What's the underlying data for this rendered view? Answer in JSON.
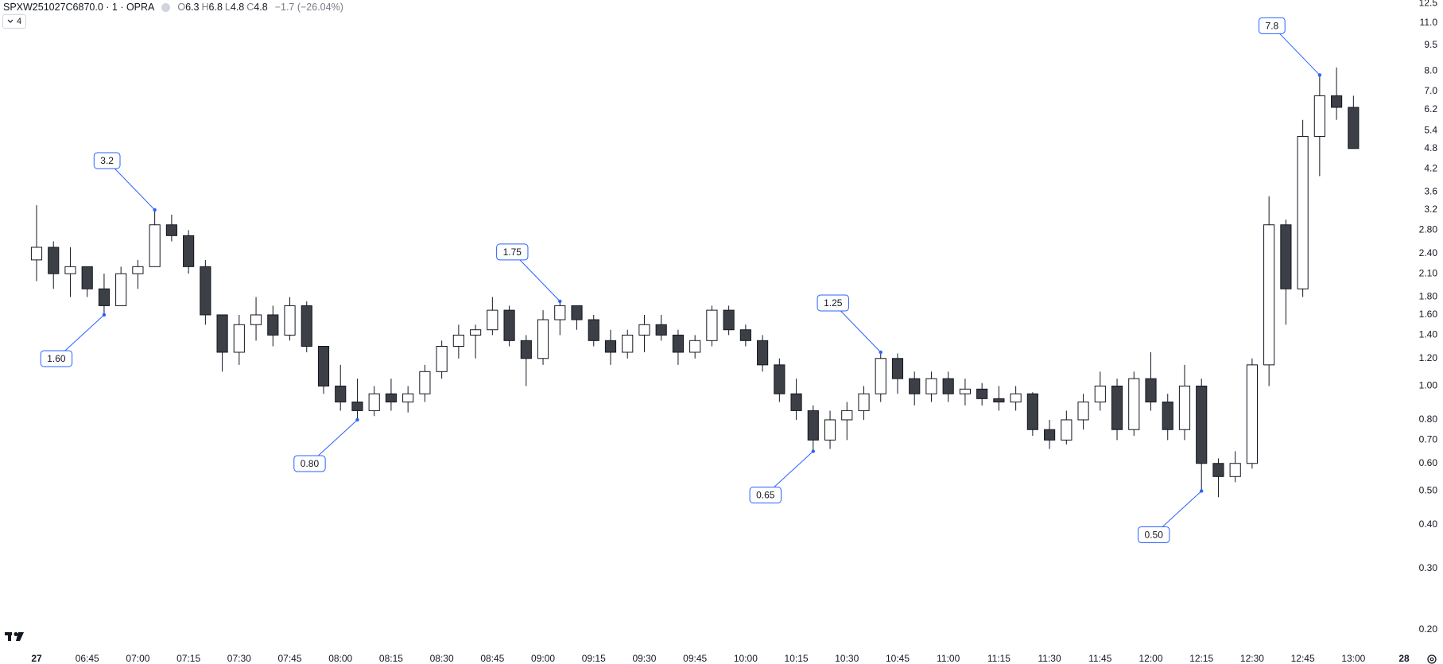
{
  "header": {
    "symbol": "SPXW251027C6870.0 · 1 · OPRA",
    "ohlc": [
      {
        "key": "O",
        "value": "6.3"
      },
      {
        "key": "H",
        "value": "6.8"
      },
      {
        "key": "L",
        "value": "4.8"
      },
      {
        "key": "C",
        "value": "4.8"
      }
    ],
    "change": "−1.7 (−26.04%)",
    "indicator_count": "4"
  },
  "chart_data": {
    "type": "candlestick",
    "log_scale": true,
    "up_color": "#ffffff",
    "down_color": "#3d3f47",
    "border_color": "#131722",
    "annotation_color": "#2962ff",
    "x": [
      "06:30",
      "06:35",
      "06:40",
      "06:45",
      "06:50",
      "06:55",
      "07:00",
      "07:05",
      "07:10",
      "07:15",
      "07:20",
      "07:25",
      "07:30",
      "07:35",
      "07:40",
      "07:45",
      "07:50",
      "07:55",
      "08:00",
      "08:05",
      "08:10",
      "08:15",
      "08:20",
      "08:25",
      "08:30",
      "08:35",
      "08:40",
      "08:45",
      "08:50",
      "08:55",
      "09:00",
      "09:05",
      "09:10",
      "09:15",
      "09:20",
      "09:25",
      "09:30",
      "09:35",
      "09:40",
      "09:45",
      "09:50",
      "09:55",
      "10:00",
      "10:05",
      "10:10",
      "10:15",
      "10:20",
      "10:25",
      "10:30",
      "10:35",
      "10:40",
      "10:45",
      "10:50",
      "10:55",
      "11:00",
      "11:05",
      "11:10",
      "11:15",
      "11:20",
      "11:25",
      "11:30",
      "11:35",
      "11:40",
      "11:45",
      "11:50",
      "11:55",
      "12:00",
      "12:05",
      "12:10",
      "12:15",
      "12:20",
      "12:25",
      "12:30",
      "12:35",
      "12:40",
      "12:45",
      "12:50",
      "12:55",
      "13:00"
    ],
    "open": [
      2.3,
      2.5,
      2.1,
      2.2,
      1.9,
      1.7,
      2.1,
      2.2,
      2.9,
      2.7,
      2.2,
      1.6,
      1.25,
      1.5,
      1.6,
      1.4,
      1.7,
      1.3,
      1.0,
      0.9,
      0.85,
      0.95,
      0.9,
      0.95,
      1.1,
      1.3,
      1.4,
      1.45,
      1.65,
      1.35,
      1.2,
      1.55,
      1.7,
      1.55,
      1.35,
      1.25,
      1.4,
      1.5,
      1.4,
      1.25,
      1.35,
      1.65,
      1.45,
      1.35,
      1.15,
      0.95,
      0.85,
      0.7,
      0.8,
      0.85,
      0.95,
      1.2,
      1.05,
      0.95,
      1.05,
      0.95,
      0.98,
      0.92,
      0.9,
      0.95,
      0.75,
      0.7,
      0.8,
      0.9,
      1.0,
      0.75,
      1.05,
      0.9,
      0.75,
      1.0,
      0.6,
      0.55,
      0.6,
      1.15,
      2.9,
      1.9,
      5.2,
      6.8,
      6.3
    ],
    "high": [
      3.3,
      2.6,
      2.5,
      2.2,
      2.1,
      2.2,
      2.3,
      3.2,
      3.1,
      2.8,
      2.3,
      1.6,
      1.6,
      1.8,
      1.7,
      1.8,
      1.75,
      1.3,
      1.15,
      1.05,
      1.0,
      1.05,
      1.0,
      1.15,
      1.35,
      1.5,
      1.5,
      1.8,
      1.7,
      1.4,
      1.65,
      1.75,
      1.7,
      1.6,
      1.45,
      1.45,
      1.6,
      1.6,
      1.45,
      1.4,
      1.7,
      1.7,
      1.5,
      1.4,
      1.2,
      1.05,
      0.88,
      0.85,
      0.9,
      1.0,
      1.25,
      1.24,
      1.1,
      1.1,
      1.1,
      1.05,
      1.02,
      1.0,
      1.0,
      0.96,
      0.8,
      0.85,
      0.95,
      1.1,
      1.05,
      1.1,
      1.25,
      0.95,
      1.15,
      1.05,
      0.62,
      0.65,
      1.2,
      3.5,
      3.0,
      5.8,
      7.8,
      8.2,
      6.8
    ],
    "low": [
      2.0,
      1.9,
      1.8,
      1.8,
      1.6,
      1.7,
      1.9,
      2.2,
      2.6,
      2.1,
      1.5,
      1.1,
      1.15,
      1.35,
      1.3,
      1.35,
      1.25,
      0.95,
      0.85,
      0.8,
      0.82,
      0.85,
      0.84,
      0.9,
      1.05,
      1.2,
      1.2,
      1.4,
      1.3,
      1.0,
      1.15,
      1.4,
      1.45,
      1.3,
      1.15,
      1.2,
      1.25,
      1.35,
      1.15,
      1.2,
      1.3,
      1.4,
      1.3,
      1.1,
      0.9,
      0.8,
      0.65,
      0.66,
      0.7,
      0.8,
      0.9,
      0.95,
      0.88,
      0.9,
      0.9,
      0.88,
      0.88,
      0.85,
      0.85,
      0.72,
      0.66,
      0.68,
      0.75,
      0.85,
      0.7,
      0.72,
      0.85,
      0.7,
      0.7,
      0.5,
      0.48,
      0.53,
      0.58,
      1.0,
      1.5,
      1.8,
      4.0,
      5.8,
      4.8
    ],
    "close": [
      2.5,
      2.1,
      2.2,
      1.9,
      1.7,
      2.1,
      2.2,
      2.9,
      2.7,
      2.2,
      1.6,
      1.25,
      1.5,
      1.6,
      1.4,
      1.7,
      1.3,
      1.0,
      0.9,
      0.85,
      0.95,
      0.9,
      0.95,
      1.1,
      1.3,
      1.4,
      1.45,
      1.65,
      1.35,
      1.2,
      1.55,
      1.7,
      1.55,
      1.35,
      1.25,
      1.4,
      1.5,
      1.4,
      1.25,
      1.35,
      1.65,
      1.45,
      1.35,
      1.15,
      0.95,
      0.85,
      0.7,
      0.8,
      0.85,
      0.95,
      1.2,
      1.05,
      0.95,
      1.05,
      0.95,
      0.98,
      0.92,
      0.9,
      0.95,
      0.75,
      0.7,
      0.8,
      0.9,
      1.0,
      0.75,
      1.05,
      0.9,
      0.75,
      1.0,
      0.6,
      0.55,
      0.6,
      1.15,
      2.9,
      1.9,
      5.2,
      6.8,
      6.3,
      4.8
    ],
    "ylim": [
      0.18,
      12.8
    ],
    "yticks": [
      12.5,
      {
        "value": 11,
        "label": "11.0"
      },
      9.5,
      {
        "value": 8,
        "label": "8.0"
      },
      {
        "value": 7,
        "label": "7.0"
      },
      6.2,
      5.4,
      4.8,
      4.2,
      3.6,
      3.2,
      {
        "value": 2.8,
        "label": "2.80"
      },
      {
        "value": 2.4,
        "label": "2.40"
      },
      {
        "value": 2.1,
        "label": "2.10"
      },
      {
        "value": 1.8,
        "label": "1.80"
      },
      {
        "value": 1.6,
        "label": "1.60"
      },
      {
        "value": 1.4,
        "label": "1.40"
      },
      {
        "value": 1.2,
        "label": "1.20"
      },
      {
        "value": 1,
        "label": "1.00"
      },
      {
        "value": 0.8,
        "label": "0.80"
      },
      {
        "value": 0.7,
        "label": "0.70"
      },
      {
        "value": 0.6,
        "label": "0.60"
      },
      {
        "value": 0.5,
        "label": "0.50"
      },
      {
        "value": 0.4,
        "label": "0.40"
      },
      {
        "value": 0.3,
        "label": "0.30"
      },
      {
        "value": 0.2,
        "label": "0.20"
      }
    ],
    "xticks": [
      {
        "value": "06:30",
        "label": "27"
      },
      "06:45",
      "07:00",
      "07:15",
      "07:30",
      "07:45",
      "08:00",
      "08:15",
      "08:30",
      "08:45",
      "09:00",
      "09:15",
      "09:30",
      "09:45",
      "10:00",
      "10:15",
      "10:30",
      "10:45",
      "11:00",
      "11:15",
      "11:30",
      "11:45",
      "12:00",
      "12:15",
      "12:30",
      "12:45",
      "13:00",
      {
        "value": "13:15",
        "label": "28"
      }
    ],
    "annotations": [
      {
        "x": "06:50",
        "value": 1.6,
        "label": "1.60"
      },
      {
        "x": "07:05",
        "value": 3.2,
        "label": "3.2"
      },
      {
        "x": "08:05",
        "value": 0.8,
        "label": "0.80"
      },
      {
        "x": "09:05",
        "value": 1.75,
        "label": "1.75"
      },
      {
        "x": "10:20",
        "value": 0.65,
        "label": "0.65"
      },
      {
        "x": "10:40",
        "value": 1.25,
        "label": "1.25"
      },
      {
        "x": "12:15",
        "value": 0.5,
        "label": "0.50"
      },
      {
        "x": "12:50",
        "value": 7.8,
        "label": "7.8"
      }
    ]
  }
}
